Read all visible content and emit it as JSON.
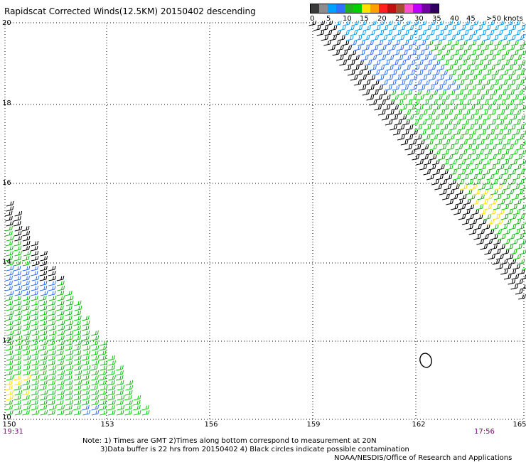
{
  "title": "Rapidscat Corrected Winds(12.5KM) 20150402 descending",
  "legend": {
    "colors": [
      "#3a3a3a",
      "#8c8c8c",
      "#00a0ff",
      "#3070ff",
      "#20b020",
      "#00d000",
      "#ffe000",
      "#ffa000",
      "#ff2020",
      "#c01010",
      "#a05030",
      "#ff50d0",
      "#c000ff",
      "#7000a0",
      "#300060"
    ],
    "labels": [
      "0",
      "5",
      "10",
      "15",
      "20",
      "25",
      "30",
      "35",
      "40",
      "45",
      ">50 knots"
    ]
  },
  "axes": {
    "lat_labels": [
      "20",
      "18",
      "16",
      "14",
      "12",
      "10"
    ],
    "lon_labels": [
      "150",
      "153",
      "156",
      "159",
      "162",
      "165"
    ]
  },
  "times": {
    "left": "19:31",
    "right": "17:56"
  },
  "notes": {
    "line1": "Note: 1) Times are GMT 2)Times along bottom correspond to measurement at 20N",
    "line2": "3)Data buffer is 22 hrs from 20150402 4) Black circles indicate possible contamination"
  },
  "credit": "NOAA/NESDIS/Office of Research and Applications",
  "swaths": [
    {
      "name": "northeast-swath",
      "bands": [
        "#000000",
        "#000000",
        "#3070ff",
        "#00a0ff",
        "#00d000",
        "#20b020",
        "#ffe000"
      ]
    },
    {
      "name": "southwest-swath",
      "bands": [
        "#000000",
        "#3070ff",
        "#00d000",
        "#20b020",
        "#ffe000",
        "#3070ff"
      ]
    }
  ],
  "contamination_marks": 1
}
